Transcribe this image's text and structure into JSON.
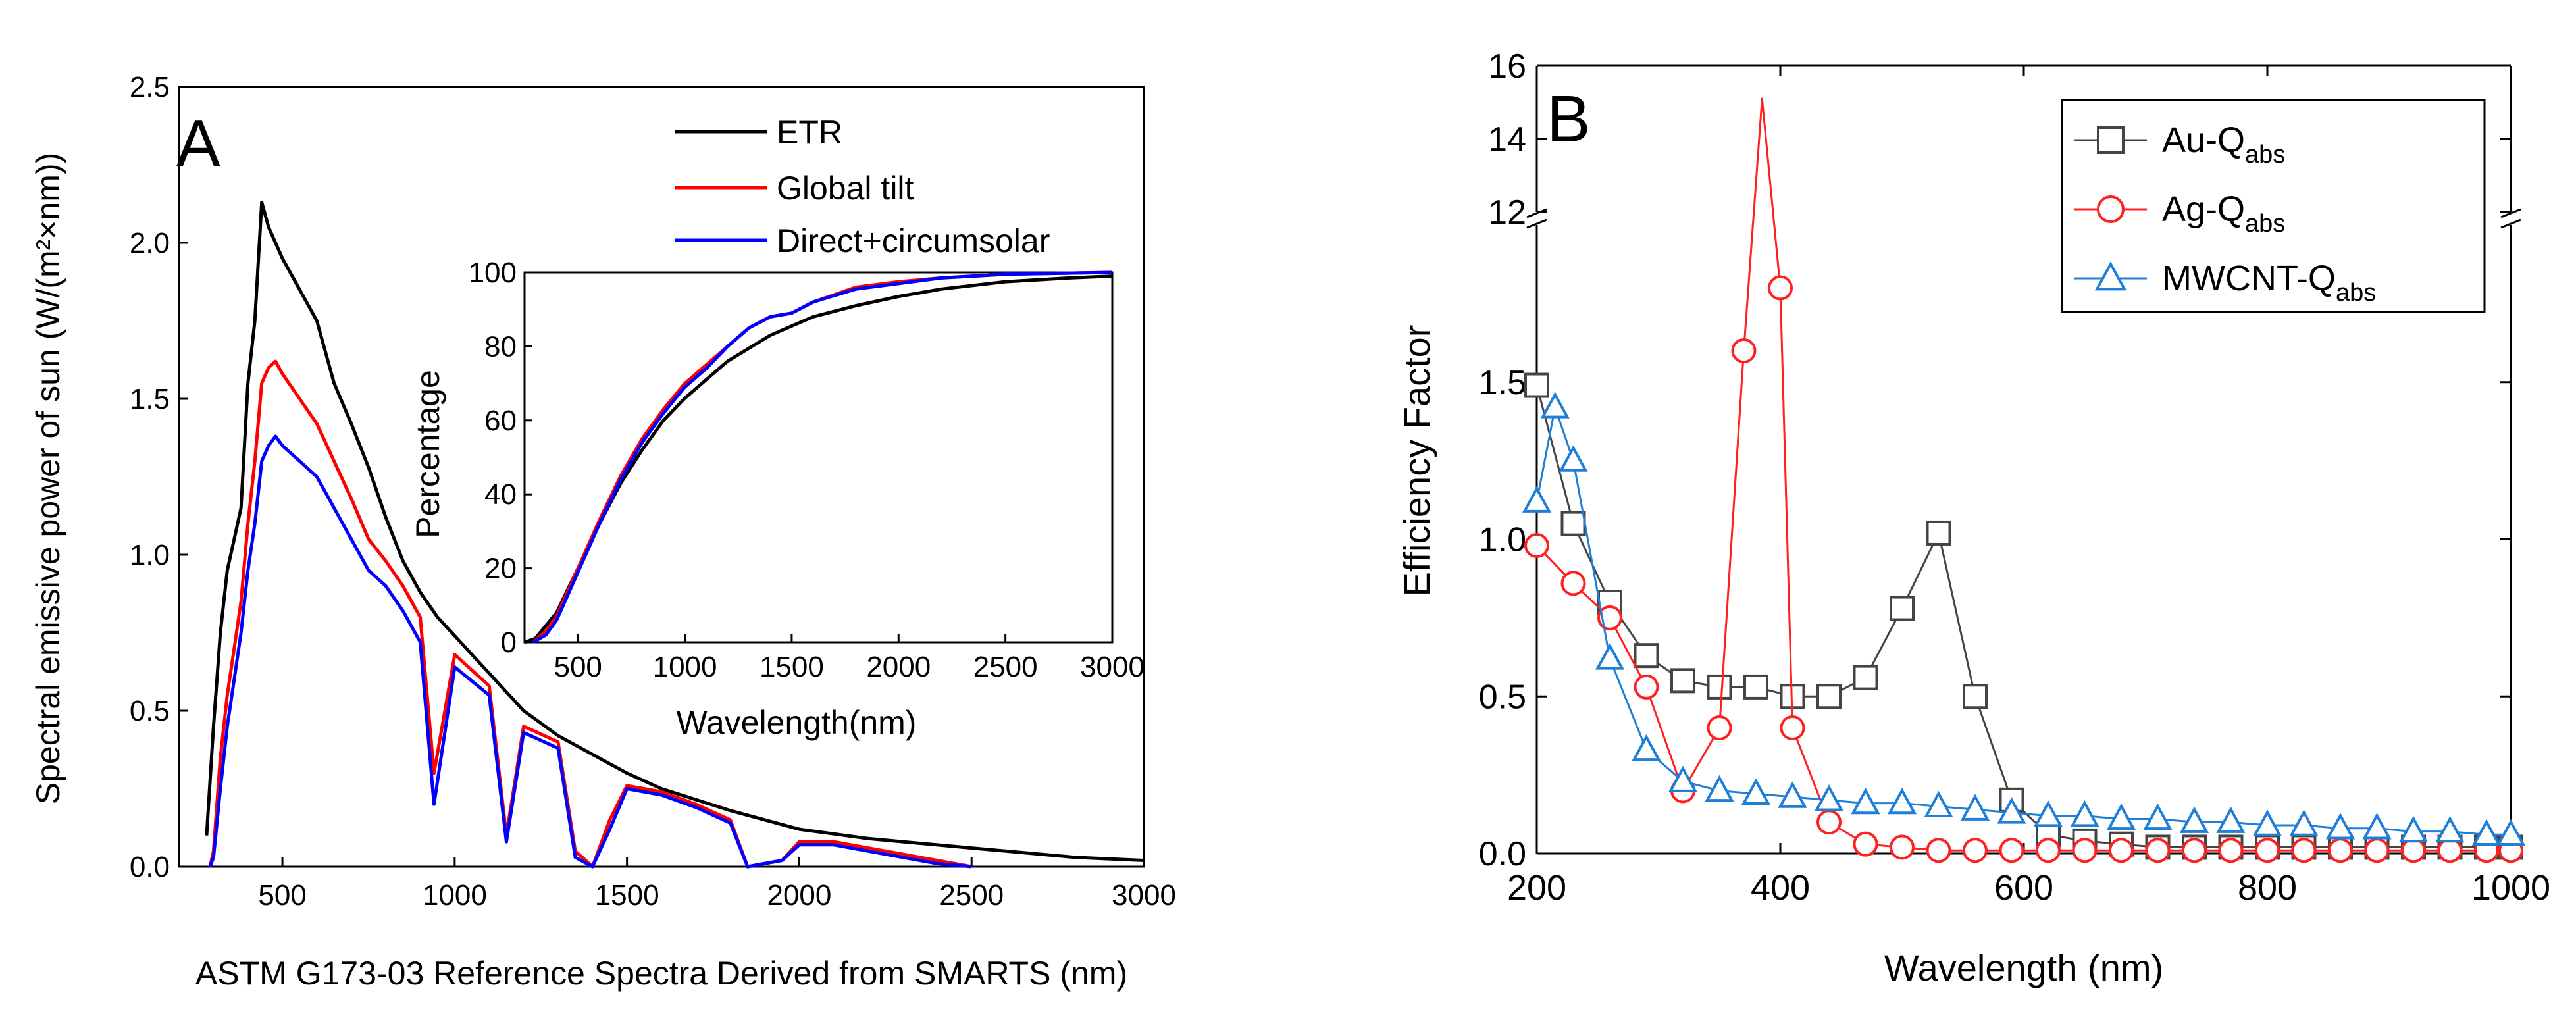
{
  "chart_data": [
    {
      "panel": "A",
      "type": "line",
      "xlabel": "ASTM  G173-03 Reference Spectra Derived from SMARTS (nm)",
      "ylabel": "Spectral emissive power of sun (W/(m²×nm))",
      "xlim": [
        200,
        3000
      ],
      "ylim": [
        0,
        2.5
      ],
      "xticks": [
        500,
        1000,
        1500,
        2000,
        2500,
        3000
      ],
      "xtick_labels": [
        "500",
        "1000",
        "1500",
        "2000",
        "2500",
        "3000"
      ],
      "yticks": [
        0.0,
        0.5,
        1.0,
        1.5,
        2.0,
        2.5
      ],
      "ytick_labels": [
        "0.0",
        "0.5",
        "1.0",
        "1.5",
        "2.0",
        "2.5"
      ],
      "legend_position": "top-right",
      "series": [
        {
          "name": "ETR",
          "color": "#000000",
          "x": [
            280,
            300,
            320,
            340,
            360,
            380,
            400,
            420,
            440,
            460,
            480,
            500,
            550,
            600,
            650,
            700,
            750,
            800,
            850,
            900,
            950,
            1000,
            1100,
            1200,
            1300,
            1400,
            1500,
            1600,
            1800,
            2000,
            2200,
            2500,
            2800,
            3000
          ],
          "y": [
            0.1,
            0.45,
            0.75,
            0.95,
            1.05,
            1.15,
            1.55,
            1.75,
            2.13,
            2.05,
            2.0,
            1.95,
            1.85,
            1.75,
            1.55,
            1.42,
            1.28,
            1.12,
            0.98,
            0.88,
            0.8,
            0.74,
            0.62,
            0.5,
            0.42,
            0.36,
            0.3,
            0.25,
            0.18,
            0.12,
            0.09,
            0.06,
            0.03,
            0.02
          ]
        },
        {
          "name": "Global tilt",
          "color": "#ff0000",
          "x": [
            290,
            300,
            320,
            340,
            360,
            380,
            400,
            420,
            440,
            460,
            480,
            500,
            550,
            600,
            650,
            700,
            750,
            800,
            850,
            900,
            940,
            1000,
            1100,
            1150,
            1200,
            1300,
            1350,
            1400,
            1450,
            1500,
            1600,
            1700,
            1800,
            1850,
            1950,
            2000,
            2100,
            2200,
            2300,
            2400,
            2500
          ],
          "y": [
            0.0,
            0.05,
            0.35,
            0.55,
            0.7,
            0.85,
            1.1,
            1.3,
            1.55,
            1.6,
            1.62,
            1.58,
            1.5,
            1.42,
            1.3,
            1.18,
            1.05,
            0.98,
            0.9,
            0.8,
            0.3,
            0.68,
            0.58,
            0.1,
            0.45,
            0.4,
            0.05,
            0.0,
            0.15,
            0.26,
            0.24,
            0.2,
            0.15,
            0.0,
            0.02,
            0.08,
            0.08,
            0.06,
            0.04,
            0.02,
            0.0
          ]
        },
        {
          "name": "Direct+circumsolar",
          "color": "#0000ff",
          "x": [
            290,
            300,
            320,
            340,
            360,
            380,
            400,
            420,
            440,
            460,
            480,
            500,
            550,
            600,
            650,
            700,
            750,
            800,
            850,
            900,
            940,
            1000,
            1100,
            1150,
            1200,
            1300,
            1350,
            1400,
            1450,
            1500,
            1600,
            1700,
            1800,
            1850,
            1950,
            2000,
            2100,
            2200,
            2300,
            2400,
            2500
          ],
          "y": [
            0.0,
            0.03,
            0.25,
            0.45,
            0.6,
            0.75,
            0.95,
            1.1,
            1.3,
            1.35,
            1.38,
            1.35,
            1.3,
            1.25,
            1.15,
            1.05,
            0.95,
            0.9,
            0.82,
            0.72,
            0.2,
            0.64,
            0.55,
            0.08,
            0.43,
            0.38,
            0.03,
            0.0,
            0.12,
            0.25,
            0.23,
            0.19,
            0.14,
            0.0,
            0.02,
            0.07,
            0.07,
            0.05,
            0.03,
            0.01,
            0.0
          ]
        }
      ],
      "inset": {
        "type": "line",
        "xlabel": "Wavelength(nm)",
        "ylabel": "Percentage",
        "xlim": [
          250,
          3000
        ],
        "ylim": [
          0,
          100
        ],
        "xticks": [
          500,
          1000,
          1500,
          2000,
          2500,
          3000
        ],
        "xtick_labels": [
          "500",
          "1000",
          "1500",
          "2000",
          "2500",
          "3000"
        ],
        "yticks": [
          0,
          20,
          40,
          60,
          80,
          100
        ],
        "ytick_labels": [
          "0",
          "20",
          "40",
          "60",
          "80",
          "100"
        ],
        "series": [
          {
            "name": "ETR",
            "color": "#000000",
            "x": [
              250,
              300,
              400,
              500,
              600,
              700,
              800,
              900,
              1000,
              1200,
              1400,
              1600,
              1800,
              2000,
              2200,
              2500,
              2800,
              3000
            ],
            "y": [
              0,
              1,
              8,
              20,
              32,
              43,
              52,
              60,
              66,
              76,
              83,
              88,
              91,
              93.5,
              95.5,
              97.5,
              98.5,
              99
            ]
          },
          {
            "name": "Global tilt",
            "color": "#ff0000",
            "x": [
              290,
              350,
              400,
              500,
              600,
              700,
              800,
              900,
              1000,
              1100,
              1200,
              1300,
              1400,
              1500,
              1600,
              1800,
              2000,
              2200,
              2500,
              3000
            ],
            "y": [
              0,
              3,
              7,
              20,
              33,
              45,
              55,
              63,
              70,
              75,
              80,
              85,
              88,
              89,
              92,
              96,
              97.5,
              98.5,
              99.5,
              100
            ]
          },
          {
            "name": "Direct+circumsolar",
            "color": "#0000ff",
            "x": [
              290,
              350,
              400,
              500,
              600,
              700,
              800,
              900,
              1000,
              1100,
              1200,
              1300,
              1400,
              1500,
              1600,
              1800,
              2000,
              2200,
              2500,
              3000
            ],
            "y": [
              0,
              2,
              6,
              19,
              32,
              44,
              54,
              62,
              69,
              74,
              80,
              85,
              88,
              89,
              92,
              95.5,
              97,
              98.5,
              99.5,
              100
            ]
          }
        ]
      }
    },
    {
      "panel": "B",
      "type": "line",
      "xlabel": "Wavelength (nm)",
      "ylabel": "Efficiency Factor",
      "xlim": [
        200,
        1000
      ],
      "ylim_lower": [
        0,
        2.0
      ],
      "ylim_upper": [
        12,
        16
      ],
      "xticks": [
        200,
        400,
        600,
        800,
        1000
      ],
      "xtick_labels": [
        "200",
        "400",
        "600",
        "800",
        "1000"
      ],
      "yticks_lower": [
        0.0,
        0.5,
        1.0,
        1.5
      ],
      "ytick_labels_lower": [
        "0.0",
        "0.5",
        "1.0",
        "1.5"
      ],
      "yticks_upper": [
        12,
        14,
        16
      ],
      "ytick_labels_upper": [
        "12",
        "14",
        "16"
      ],
      "axis_break": true,
      "legend_position": "top-right",
      "series": [
        {
          "name": "Au-Qabs",
          "label_main": "Au-Q",
          "label_sub": "abs",
          "color": "#444444",
          "marker": "square",
          "x": [
            200,
            230,
            260,
            290,
            320,
            350,
            380,
            410,
            440,
            470,
            500,
            530,
            560,
            590,
            620,
            650,
            680,
            710,
            740,
            770,
            800,
            830,
            860,
            890,
            920,
            950,
            980,
            1000
          ],
          "y": [
            1.49,
            1.05,
            0.8,
            0.63,
            0.55,
            0.53,
            0.53,
            0.5,
            0.5,
            0.56,
            0.78,
            1.02,
            0.5,
            0.17,
            0.06,
            0.04,
            0.03,
            0.02,
            0.02,
            0.02,
            0.02,
            0.02,
            0.02,
            0.02,
            0.02,
            0.02,
            0.02,
            0.02
          ]
        },
        {
          "name": "Ag-Qabs",
          "label_main": "Ag-Q",
          "label_sub": "abs",
          "color": "#ff2020",
          "marker": "circle",
          "x": [
            200,
            230,
            260,
            290,
            320,
            350,
            370,
            385,
            400,
            410,
            440,
            470,
            500,
            530,
            560,
            590,
            620,
            650,
            680,
            710,
            740,
            770,
            800,
            830,
            860,
            890,
            920,
            950,
            980,
            1000
          ],
          "y": [
            0.98,
            0.86,
            0.75,
            0.53,
            0.2,
            0.4,
            1.6,
            15.1,
            1.8,
            0.4,
            0.1,
            0.03,
            0.02,
            0.01,
            0.01,
            0.01,
            0.01,
            0.01,
            0.01,
            0.01,
            0.01,
            0.01,
            0.01,
            0.01,
            0.01,
            0.01,
            0.01,
            0.01,
            0.01,
            0.01
          ]
        },
        {
          "name": "MWCNT-Qabs",
          "label_main": "MWCNT-Q",
          "label_sub": "abs",
          "color": "#1f7fd8",
          "marker": "triangle",
          "x": [
            200,
            215,
            230,
            260,
            290,
            320,
            350,
            380,
            410,
            440,
            470,
            500,
            530,
            560,
            590,
            620,
            650,
            680,
            710,
            740,
            770,
            800,
            830,
            860,
            890,
            920,
            950,
            980,
            1000
          ],
          "y": [
            1.12,
            1.42,
            1.25,
            0.62,
            0.33,
            0.23,
            0.2,
            0.19,
            0.18,
            0.17,
            0.16,
            0.16,
            0.15,
            0.14,
            0.13,
            0.12,
            0.12,
            0.11,
            0.11,
            0.1,
            0.1,
            0.09,
            0.09,
            0.08,
            0.08,
            0.07,
            0.07,
            0.06,
            0.06
          ]
        }
      ]
    }
  ],
  "panel_labels": {
    "a": "A",
    "b": "B"
  }
}
